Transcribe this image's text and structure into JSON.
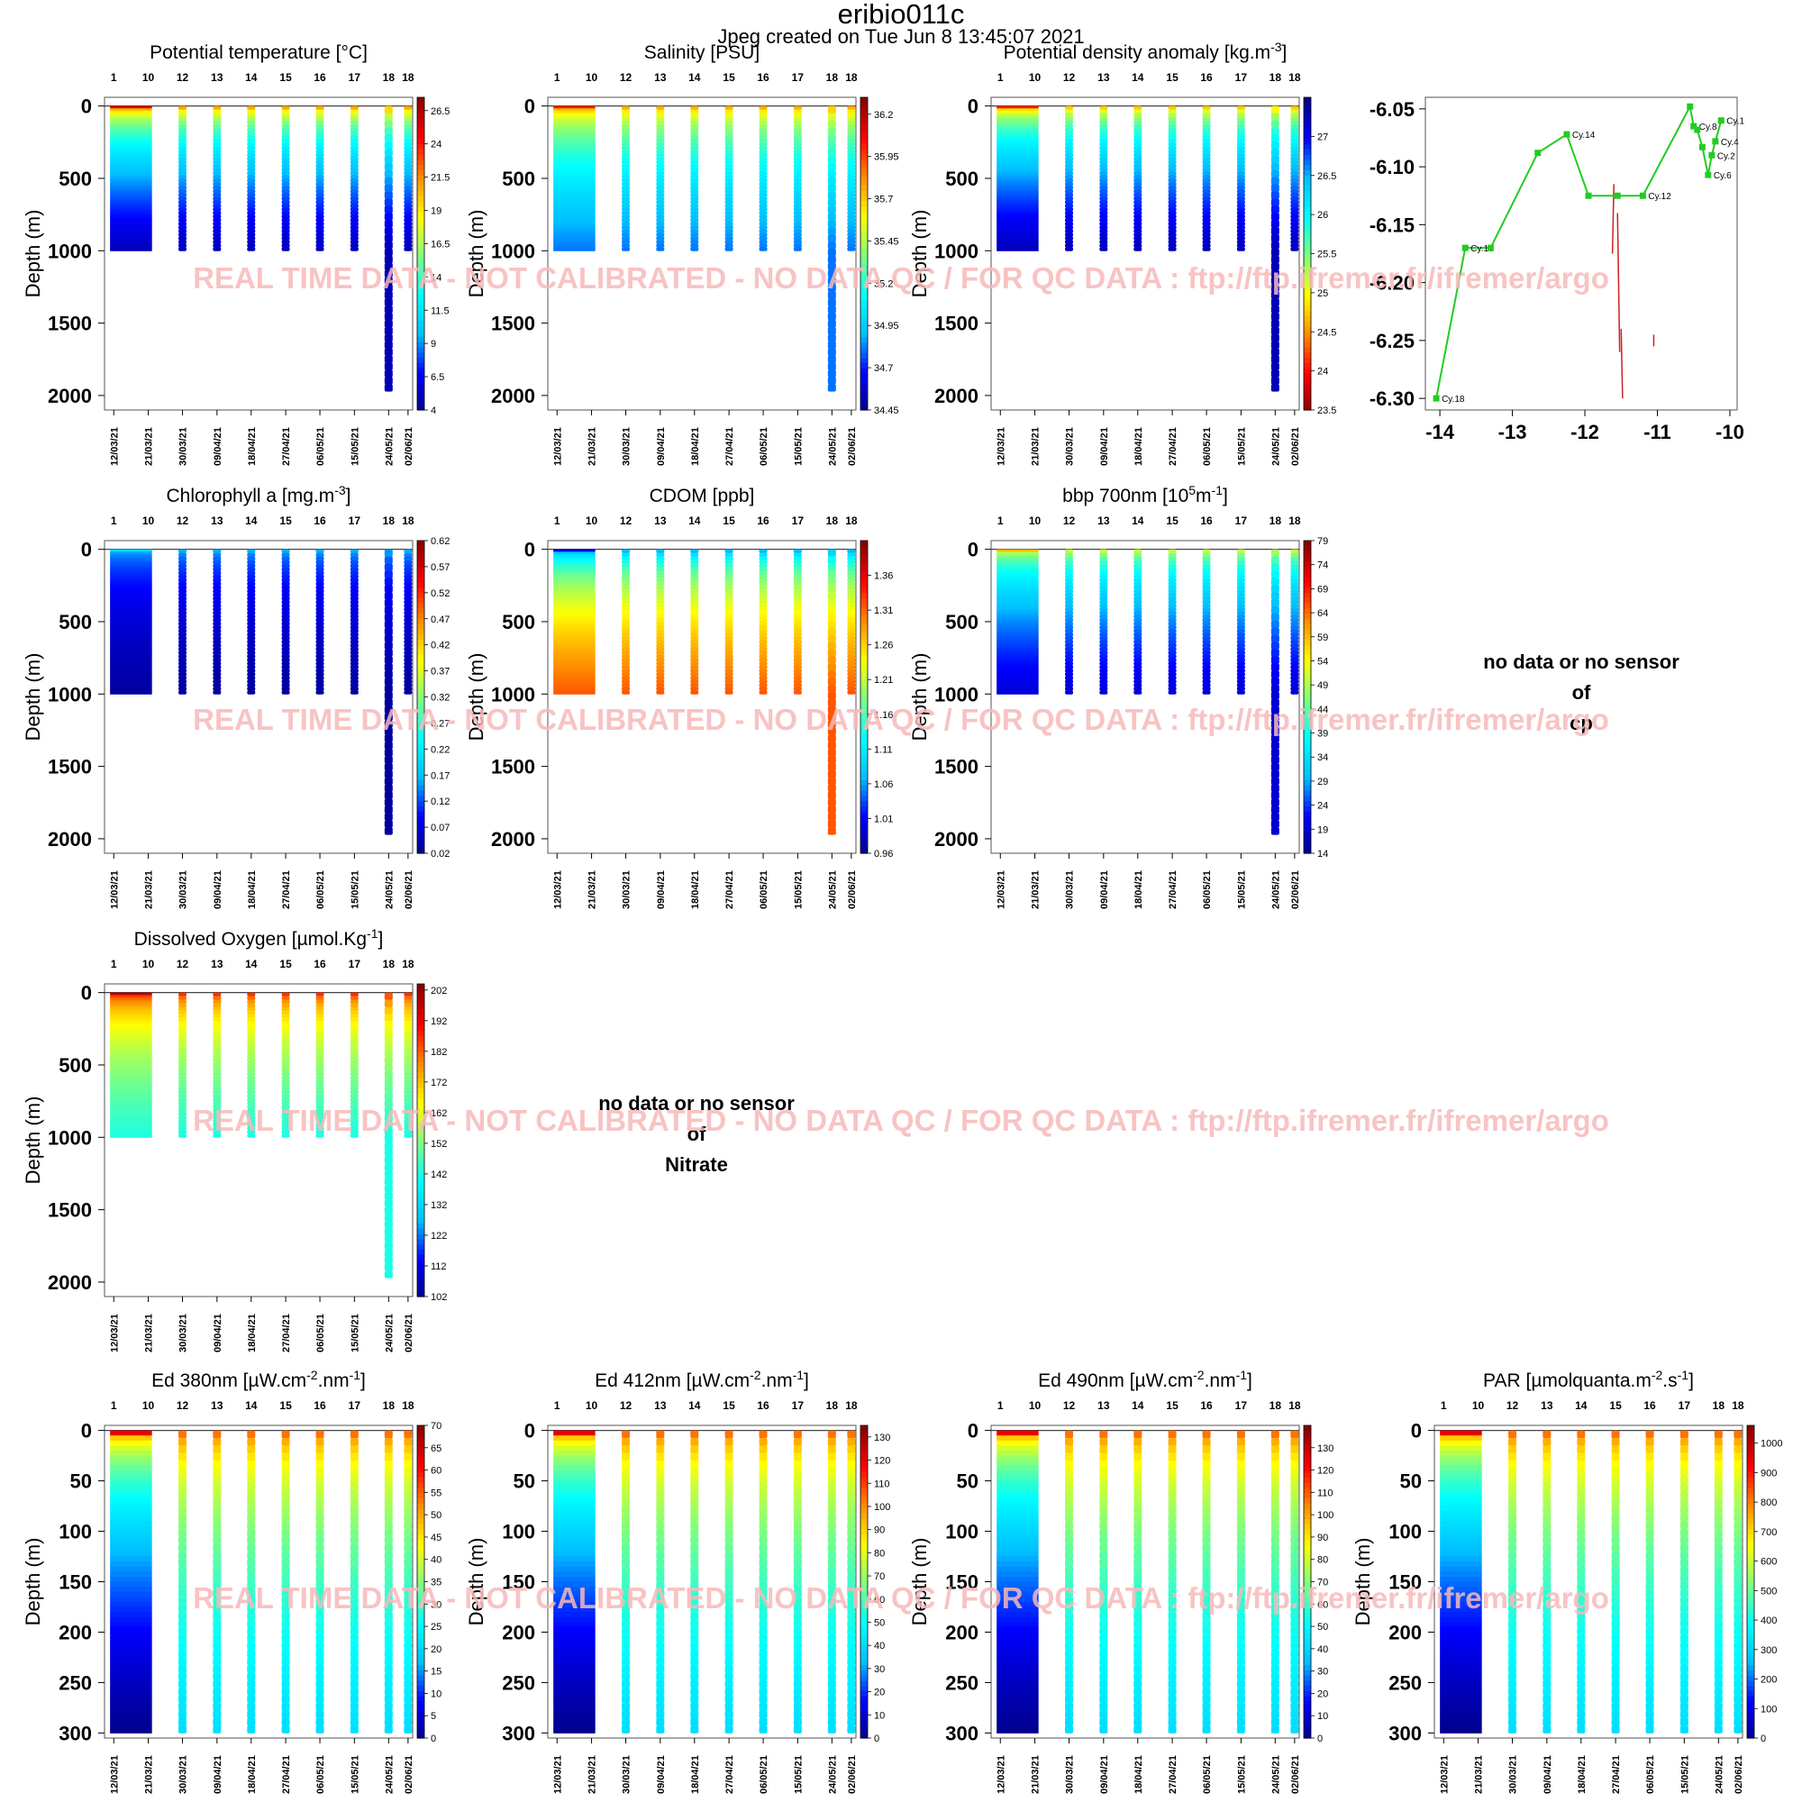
{
  "header": {
    "title": "eribio011c",
    "subtitle": "Jpeg created on  Tue Jun  8 13:45:07 2021"
  },
  "watermark": "REAL TIME DATA - NOT CALIBRATED - NO DATA QC   /  FOR QC DATA : ftp://ftp.ifremer.fr/ifremer/argo",
  "no_data": {
    "cp": [
      "no data or no sensor",
      "of",
      "cp"
    ],
    "nitrate": [
      "no data or no sensor",
      "of",
      "Nitrate"
    ]
  },
  "colors": {
    "colormap": [
      "#00008b",
      "#0000ff",
      "#00bfff",
      "#00ffff",
      "#7fff7f",
      "#ffff00",
      "#ff8c00",
      "#ff0000",
      "#8b0000"
    ],
    "trajectory": "#22cc22",
    "drift": "#cc2222",
    "watermark": "#f7b9b9"
  },
  "chart_data": [
    {
      "id": "temp",
      "type": "scatter",
      "title": "Potential temperature [°C]",
      "ylabel": "Depth (m)",
      "ylim": [
        2100,
        -60
      ],
      "yticks": [
        0,
        500,
        1000,
        1500,
        2000
      ],
      "cycles": [
        "1",
        "10",
        "12",
        "13",
        "14",
        "15",
        "16",
        "17",
        "18",
        "18"
      ],
      "dates": [
        "12/03/21",
        "21/03/21",
        "30/03/21",
        "09/04/21",
        "18/04/21",
        "27/04/21",
        "06/05/21",
        "15/05/21",
        "24/05/21",
        "02/06/21"
      ],
      "colorbar": {
        "min": 4,
        "max": 27.5,
        "labels": [
          "26.5",
          "24",
          "21.5",
          "19",
          "16.5",
          "14",
          "11.5",
          "9",
          "6.5",
          "4"
        ]
      },
      "profile_depth_max": [
        1000,
        1000,
        1000,
        1000,
        1000,
        1000,
        1000,
        1000,
        1970,
        1000
      ],
      "values_top": 0.9,
      "values_bottom": 0.05
    },
    {
      "id": "psal",
      "type": "scatter",
      "title": "Salinity [PSU]",
      "ylabel": "Depth (m)",
      "ylim": [
        2100,
        -60
      ],
      "yticks": [
        0,
        500,
        1000,
        1500,
        2000
      ],
      "cycles": [
        "1",
        "10",
        "12",
        "13",
        "14",
        "15",
        "16",
        "17",
        "18",
        "18"
      ],
      "dates": [
        "12/03/21",
        "21/03/21",
        "30/03/21",
        "09/04/21",
        "18/04/21",
        "27/04/21",
        "06/05/21",
        "15/05/21",
        "24/05/21",
        "02/06/21"
      ],
      "colorbar": {
        "min": 34.45,
        "max": 36.3,
        "labels": [
          "36.2",
          "35.95",
          "35.7",
          "35.45",
          "35.2",
          "34.95",
          "34.7",
          "34.45"
        ]
      },
      "profile_depth_max": [
        1000,
        1000,
        1000,
        1000,
        1000,
        1000,
        1000,
        1000,
        1970,
        1000
      ],
      "values_top": 0.85,
      "values_bottom": 0.2
    },
    {
      "id": "sigma",
      "type": "scatter",
      "title": "Potential density anomaly [kg.m",
      "title_sup": "-3",
      "title_end": "]",
      "ylabel": "Depth (m)",
      "ylim": [
        2100,
        -60
      ],
      "yticks": [
        0,
        500,
        1000,
        1500,
        2000
      ],
      "cycles": [
        "1",
        "10",
        "12",
        "13",
        "14",
        "15",
        "16",
        "17",
        "18",
        "18"
      ],
      "dates": [
        "12/03/21",
        "21/03/21",
        "30/03/21",
        "09/04/21",
        "18/04/21",
        "27/04/21",
        "06/05/21",
        "15/05/21",
        "24/05/21",
        "02/06/21"
      ],
      "colorbar": {
        "min": 23.5,
        "max": 27.5,
        "reversed": true,
        "labels": [
          "27",
          "26.5",
          "26",
          "25.5",
          "25",
          "24.5",
          "24",
          "23.5"
        ]
      },
      "profile_depth_max": [
        1000,
        1000,
        1000,
        1000,
        1000,
        1000,
        1000,
        1000,
        1970,
        1000
      ],
      "values_top": 0.85,
      "values_bottom": 0.05
    },
    {
      "id": "traj",
      "type": "line",
      "xlim": [
        -14.2,
        -9.9
      ],
      "ylim": [
        -6.31,
        -6.04
      ],
      "xticks": [
        -14,
        -13,
        -12,
        -11,
        -10
      ],
      "yticks": [
        -6.05,
        -6.1,
        -6.15,
        -6.2,
        -6.25,
        -6.3
      ],
      "points": [
        {
          "lon": -14.05,
          "lat": -6.3,
          "label": "Cy.18"
        },
        {
          "lon": -13.65,
          "lat": -6.17,
          "label": "Cy.16"
        },
        {
          "lon": -13.3,
          "lat": -6.17,
          "label": ""
        },
        {
          "lon": -12.65,
          "lat": -6.088,
          "label": ""
        },
        {
          "lon": -12.25,
          "lat": -6.072,
          "label": "Cy.14"
        },
        {
          "lon": -11.95,
          "lat": -6.125,
          "label": ""
        },
        {
          "lon": -11.55,
          "lat": -6.125,
          "label": ""
        },
        {
          "lon": -11.2,
          "lat": -6.125,
          "label": "Cy.12"
        },
        {
          "lon": -10.55,
          "lat": -6.048,
          "label": ""
        },
        {
          "lon": -10.5,
          "lat": -6.065,
          "label": "Cy.8"
        },
        {
          "lon": -10.45,
          "lat": -6.068,
          "label": ""
        },
        {
          "lon": -10.38,
          "lat": -6.083,
          "label": ""
        },
        {
          "lon": -10.3,
          "lat": -6.107,
          "label": "Cy.6"
        },
        {
          "lon": -10.25,
          "lat": -6.09,
          "label": "Cy.2"
        },
        {
          "lon": -10.2,
          "lat": -6.078,
          "label": "Cy.4"
        },
        {
          "lon": -10.12,
          "lat": -6.06,
          "label": "Cy.1"
        }
      ],
      "drift_segments": [
        [
          [
            -11.6,
            -6.115
          ],
          [
            -11.62,
            -6.175
          ]
        ],
        [
          [
            -11.55,
            -6.14
          ],
          [
            -11.52,
            -6.26
          ]
        ],
        [
          [
            -11.5,
            -6.24
          ],
          [
            -11.48,
            -6.3
          ]
        ],
        [
          [
            -11.05,
            -6.245
          ],
          [
            -11.05,
            -6.255
          ]
        ]
      ]
    },
    {
      "id": "chla",
      "type": "scatter",
      "title": "Chlorophyll a [mg.m",
      "title_sup": "-3",
      "title_end": "]",
      "ylabel": "Depth (m)",
      "ylim": [
        2100,
        -60
      ],
      "yticks": [
        0,
        500,
        1000,
        1500,
        2000
      ],
      "cycles": [
        "1",
        "10",
        "12",
        "13",
        "14",
        "15",
        "16",
        "17",
        "18",
        "18"
      ],
      "dates": [
        "12/03/21",
        "21/03/21",
        "30/03/21",
        "09/04/21",
        "18/04/21",
        "27/04/21",
        "06/05/21",
        "15/05/21",
        "24/05/21",
        "02/06/21"
      ],
      "colorbar": {
        "min": 0.02,
        "max": 0.62,
        "labels": [
          "0.62",
          "0.57",
          "0.52",
          "0.47",
          "0.42",
          "0.37",
          "0.32",
          "0.27",
          "0.22",
          "0.17",
          "0.12",
          "0.07",
          "0.02"
        ]
      },
      "profile_depth_max": [
        1000,
        1000,
        1000,
        1000,
        1000,
        1000,
        1000,
        1000,
        1970,
        1000
      ],
      "values_top": 0.3,
      "values_bottom": 0.02
    },
    {
      "id": "cdom",
      "type": "scatter",
      "title": "CDOM  [ppb]",
      "ylabel": "Depth (m)",
      "ylim": [
        2100,
        -60
      ],
      "yticks": [
        0,
        500,
        1000,
        1500,
        2000
      ],
      "cycles": [
        "1",
        "10",
        "12",
        "13",
        "14",
        "15",
        "16",
        "17",
        "18",
        "18"
      ],
      "dates": [
        "12/03/21",
        "21/03/21",
        "30/03/21",
        "09/04/21",
        "18/04/21",
        "27/04/21",
        "06/05/21",
        "15/05/21",
        "24/05/21",
        "02/06/21"
      ],
      "colorbar": {
        "min": 0.96,
        "max": 1.41,
        "labels": [
          "1.36",
          "1.31",
          "1.26",
          "1.21",
          "1.16",
          "1.11",
          "1.06",
          "1.01",
          "0.96"
        ]
      },
      "profile_depth_max": [
        1000,
        1000,
        1000,
        1000,
        1000,
        1000,
        1000,
        1000,
        1970,
        1000
      ],
      "values_top": 0.1,
      "values_bottom": 0.8
    },
    {
      "id": "bbp",
      "type": "scatter",
      "title": "bbp 700nm [10",
      "title_sup": "5",
      "title_mid": "m",
      "title_sup2": "-1",
      "title_end": "]",
      "ylabel": "Depth (m)",
      "ylim": [
        2100,
        -60
      ],
      "yticks": [
        0,
        500,
        1000,
        1500,
        2000
      ],
      "cycles": [
        "1",
        "10",
        "12",
        "13",
        "14",
        "15",
        "16",
        "17",
        "18",
        "18"
      ],
      "dates": [
        "12/03/21",
        "21/03/21",
        "30/03/21",
        "09/04/21",
        "18/04/21",
        "27/04/21",
        "06/05/21",
        "15/05/21",
        "24/05/21",
        "02/06/21"
      ],
      "colorbar": {
        "min": 14,
        "max": 79,
        "labels": [
          "79",
          "74",
          "69",
          "64",
          "59",
          "54",
          "49",
          "44",
          "39",
          "34",
          "29",
          "24",
          "19",
          "14"
        ]
      },
      "profile_depth_max": [
        1000,
        1000,
        1000,
        1000,
        1000,
        1000,
        1000,
        1000,
        1970,
        1000
      ],
      "values_top": 0.7,
      "values_bottom": 0.08
    },
    {
      "id": "doxy",
      "type": "scatter",
      "title": "Dissolved Oxygen [µmol.Kg",
      "title_sup": "-1",
      "title_end": "]",
      "ylabel": "Depth (m)",
      "ylim": [
        2100,
        -60
      ],
      "yticks": [
        0,
        500,
        1000,
        1500,
        2000
      ],
      "cycles": [
        "1",
        "10",
        "12",
        "13",
        "14",
        "15",
        "16",
        "17",
        "18",
        "18"
      ],
      "dates": [
        "12/03/21",
        "21/03/21",
        "30/03/21",
        "09/04/21",
        "18/04/21",
        "27/04/21",
        "06/05/21",
        "15/05/21",
        "24/05/21",
        "02/06/21"
      ],
      "colorbar": {
        "min": 102,
        "max": 204,
        "labels": [
          "202",
          "192",
          "182",
          "172",
          "162",
          "152",
          "142",
          "132",
          "122",
          "112",
          "102"
        ]
      },
      "profile_depth_max": [
        1000,
        1000,
        1000,
        1000,
        1000,
        1000,
        1000,
        1000,
        1970,
        1000
      ],
      "values_top": 0.95,
      "values_bottom": 0.4
    },
    {
      "id": "ed380",
      "type": "scatter",
      "title": "Ed 380nm [µW.cm",
      "title_sup": "-2",
      "title_mid": ".nm",
      "title_sup2": "-1",
      "title_end": "]",
      "ylabel": "Depth (m)",
      "ylim": [
        305,
        -5
      ],
      "yticks": [
        0,
        50,
        100,
        150,
        200,
        250,
        300
      ],
      "cycles": [
        "1",
        "10",
        "12",
        "13",
        "14",
        "15",
        "16",
        "17",
        "18",
        "18"
      ],
      "dates": [
        "12/03/21",
        "21/03/21",
        "30/03/21",
        "09/04/21",
        "18/04/21",
        "27/04/21",
        "06/05/21",
        "15/05/21",
        "24/05/21",
        "02/06/21"
      ],
      "colorbar": {
        "min": 0,
        "max": 70,
        "labels": [
          "70",
          "65",
          "60",
          "55",
          "50",
          "45",
          "40",
          "35",
          "30",
          "25",
          "20",
          "15",
          "10",
          "5",
          "0"
        ]
      },
      "profile_depth_max": [
        300,
        300,
        300,
        300,
        300,
        300,
        300,
        300,
        300,
        300
      ],
      "values_top": 0.9,
      "values_bottom": 0.0
    },
    {
      "id": "ed412",
      "type": "scatter",
      "title": "Ed 412nm [µW.cm",
      "title_sup": "-2",
      "title_mid": ".nm",
      "title_sup2": "-1",
      "title_end": "]",
      "ylabel": "Depth (m)",
      "ylim": [
        305,
        -5
      ],
      "yticks": [
        0,
        50,
        100,
        150,
        200,
        250,
        300
      ],
      "cycles": [
        "1",
        "10",
        "12",
        "13",
        "14",
        "15",
        "16",
        "17",
        "18",
        "18"
      ],
      "dates": [
        "12/03/21",
        "21/03/21",
        "30/03/21",
        "09/04/21",
        "18/04/21",
        "27/04/21",
        "06/05/21",
        "15/05/21",
        "24/05/21",
        "02/06/21"
      ],
      "colorbar": {
        "min": 0,
        "max": 135,
        "labels": [
          "130",
          "120",
          "110",
          "100",
          "90",
          "80",
          "70",
          "60",
          "50",
          "40",
          "30",
          "20",
          "10",
          "0"
        ]
      },
      "profile_depth_max": [
        300,
        300,
        300,
        300,
        300,
        300,
        300,
        300,
        300,
        300
      ],
      "values_top": 0.9,
      "values_bottom": 0.0
    },
    {
      "id": "ed490",
      "type": "scatter",
      "title": "Ed 490nm [µW.cm",
      "title_sup": "-2",
      "title_mid": ".nm",
      "title_sup2": "-1",
      "title_end": "]",
      "ylabel": "Depth (m)",
      "ylim": [
        305,
        -5
      ],
      "yticks": [
        0,
        50,
        100,
        150,
        200,
        250,
        300
      ],
      "cycles": [
        "1",
        "10",
        "12",
        "13",
        "14",
        "15",
        "16",
        "17",
        "18",
        "18"
      ],
      "dates": [
        "12/03/21",
        "21/03/21",
        "30/03/21",
        "09/04/21",
        "18/04/21",
        "27/04/21",
        "06/05/21",
        "15/05/21",
        "24/05/21",
        "02/06/21"
      ],
      "colorbar": {
        "min": 0,
        "max": 140,
        "labels": [
          "130",
          "120",
          "110",
          "100",
          "90",
          "80",
          "70",
          "60",
          "50",
          "40",
          "30",
          "20",
          "10",
          "0"
        ]
      },
      "profile_depth_max": [
        300,
        300,
        300,
        300,
        300,
        300,
        300,
        300,
        300,
        300
      ],
      "values_top": 0.9,
      "values_bottom": 0.0
    },
    {
      "id": "par",
      "type": "scatter",
      "title": "PAR [µmolquanta.m",
      "title_sup": "-2",
      "title_mid": ".s",
      "title_sup2": "-1",
      "title_end": "]",
      "ylabel": "Depth (m)",
      "ylim": [
        305,
        -5
      ],
      "yticks": [
        0,
        50,
        100,
        150,
        200,
        250,
        300
      ],
      "cycles": [
        "1",
        "10",
        "12",
        "13",
        "14",
        "15",
        "16",
        "17",
        "18",
        "18"
      ],
      "dates": [
        "12/03/21",
        "21/03/21",
        "30/03/21",
        "09/04/21",
        "18/04/21",
        "27/04/21",
        "06/05/21",
        "15/05/21",
        "24/05/21",
        "02/06/21"
      ],
      "colorbar": {
        "min": 0,
        "max": 1060,
        "labels": [
          "1000",
          "900",
          "800",
          "700",
          "600",
          "500",
          "400",
          "300",
          "200",
          "100",
          "0"
        ]
      },
      "profile_depth_max": [
        300,
        300,
        300,
        300,
        300,
        300,
        300,
        300,
        300,
        300
      ],
      "values_top": 0.9,
      "values_bottom": 0.0
    }
  ]
}
